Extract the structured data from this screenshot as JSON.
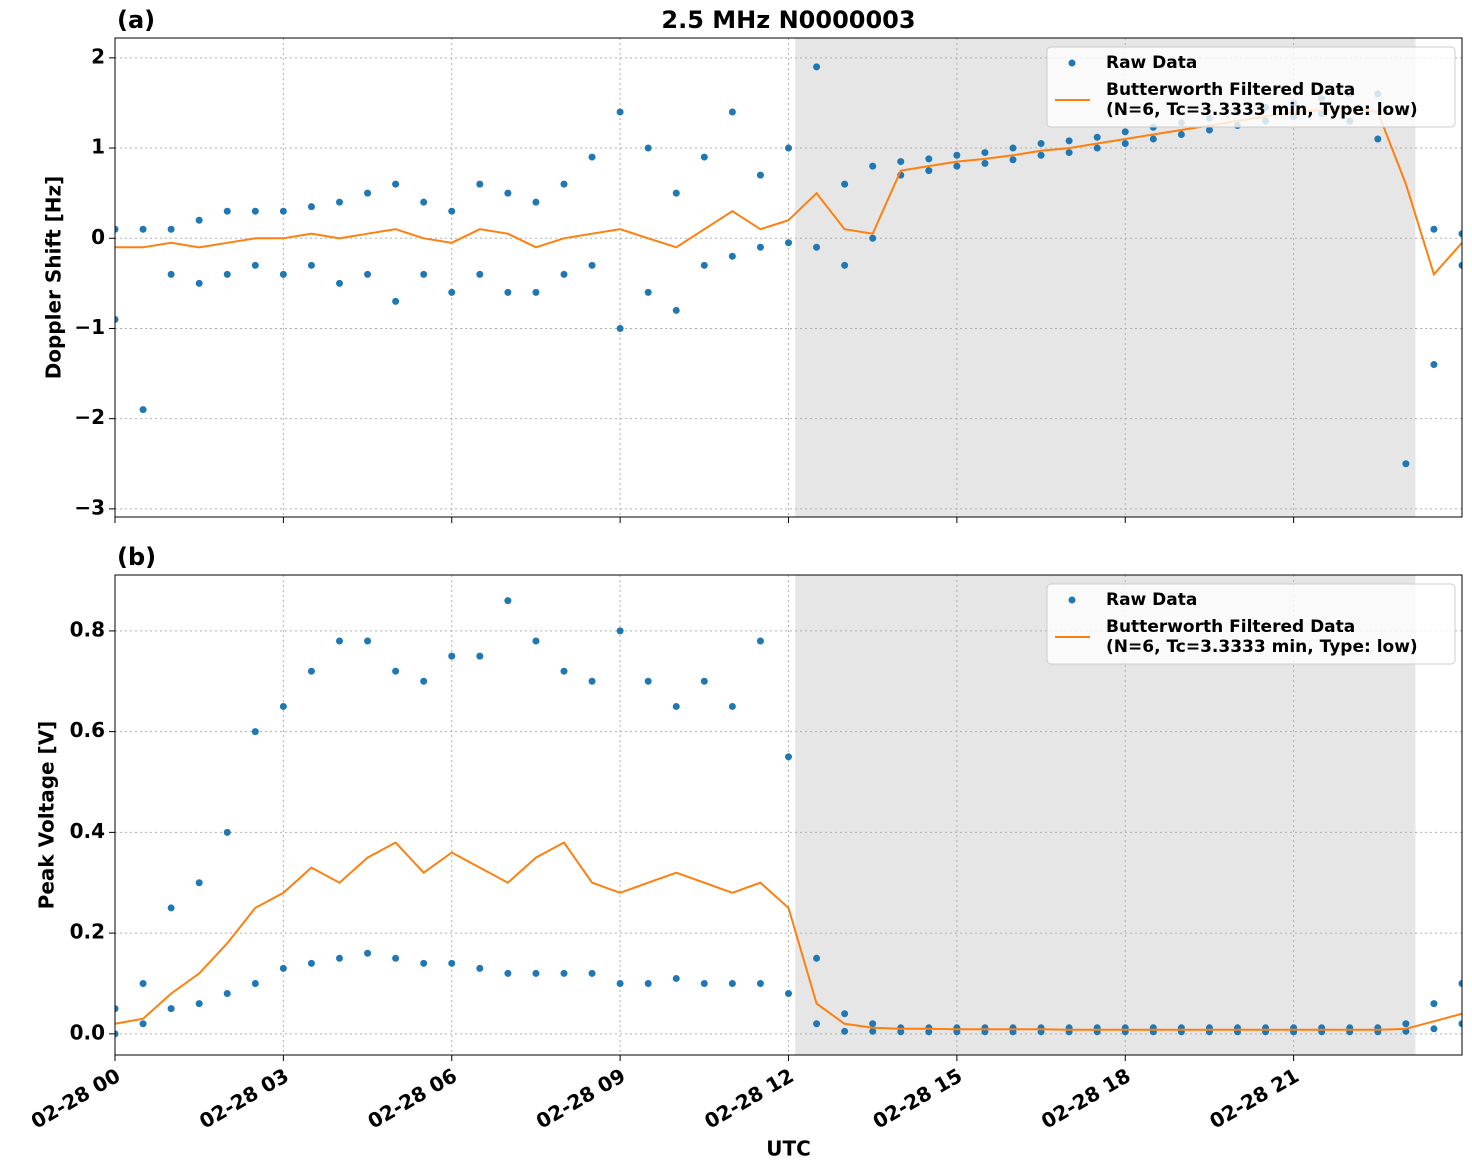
{
  "chart_data": [
    {
      "type": "line",
      "title": "2.5 MHz N0000003",
      "panel_label": "(a)",
      "ylabel": "Doppler Shift [Hz]",
      "ylim": [
        -3.09,
        2.22
      ],
      "yticks": [
        {
          "value": -3,
          "label": "−3"
        },
        {
          "value": -2,
          "label": "−2"
        },
        {
          "value": -1,
          "label": "−1"
        },
        0,
        1,
        2
      ],
      "shade": [
        12.12,
        23.17
      ],
      "grid": true,
      "legend": "upper right",
      "series": [
        {
          "name": "Raw Data",
          "type": "scatter",
          "color": "#1f77b4",
          "x": [
            0,
            0,
            0.5,
            0.5,
            1,
            1,
            1.5,
            1.5,
            2,
            2,
            2.5,
            2.5,
            3,
            3,
            3.5,
            3.5,
            4,
            4,
            4.5,
            4.5,
            5,
            5,
            5.5,
            5.5,
            6,
            6,
            6.5,
            6.5,
            7,
            7,
            7.5,
            7.5,
            8,
            8,
            8.5,
            8.5,
            9,
            9,
            9.5,
            9.5,
            10,
            10,
            10.5,
            10.5,
            11,
            11,
            11.5,
            11.5,
            12,
            12,
            12.5,
            12.5,
            13,
            13,
            13.5,
            13.5,
            14,
            14,
            14.5,
            14.5,
            15,
            15,
            15.5,
            15.5,
            16,
            16,
            16.5,
            16.5,
            17,
            17,
            17.5,
            17.5,
            18,
            18,
            18.5,
            18.5,
            19,
            19,
            19.5,
            19.5,
            20,
            20,
            20.5,
            20.5,
            21,
            21,
            21.5,
            21.5,
            22,
            22,
            22.5,
            22.5,
            23,
            23,
            23.5,
            23.5,
            24,
            24
          ],
          "values": [
            -0.9,
            0.1,
            -1.9,
            0.1,
            -0.4,
            0.1,
            -0.5,
            0.2,
            -0.4,
            0.3,
            -0.3,
            0.3,
            -0.4,
            0.3,
            -0.3,
            0.35,
            -0.5,
            0.4,
            -0.4,
            0.5,
            -0.7,
            0.6,
            -0.4,
            0.4,
            -0.6,
            0.3,
            -0.4,
            0.6,
            -0.6,
            0.5,
            -0.6,
            0.4,
            -0.4,
            0.6,
            -0.3,
            0.9,
            -1.0,
            1.4,
            -0.6,
            1.0,
            -0.8,
            0.5,
            -0.3,
            0.9,
            -0.2,
            1.4,
            -0.1,
            0.7,
            -0.05,
            1.0,
            -0.1,
            1.9,
            -0.3,
            0.6,
            0.0,
            0.8,
            0.7,
            0.85,
            0.75,
            0.88,
            0.8,
            0.92,
            0.83,
            0.95,
            0.87,
            1.0,
            0.92,
            1.05,
            0.95,
            1.08,
            1.0,
            1.12,
            1.05,
            1.18,
            1.1,
            1.23,
            1.15,
            1.28,
            1.2,
            1.33,
            1.25,
            1.4,
            1.3,
            1.45,
            1.35,
            1.5,
            1.38,
            1.55,
            1.3,
            1.6,
            1.1,
            1.6,
            -2.5,
            1.4,
            -1.4,
            0.1,
            -0.3,
            0.05
          ]
        },
        {
          "name": "Butterworth Filtered Data\n(N=6, Tc=3.3333 min, Type: low)",
          "type": "line",
          "color": "#ff7f0e",
          "x": [
            0,
            0.5,
            1,
            1.5,
            2,
            2.5,
            3,
            3.5,
            4,
            4.5,
            5,
            5.5,
            6,
            6.5,
            7,
            7.5,
            8,
            8.5,
            9,
            9.5,
            10,
            10.5,
            11,
            11.5,
            12,
            12.5,
            13,
            13.5,
            14,
            14.5,
            15,
            15.5,
            16,
            16.5,
            17,
            17.5,
            18,
            18.5,
            19,
            19.5,
            20,
            20.5,
            21,
            21.5,
            22,
            22.5,
            23,
            23.5,
            24
          ],
          "values": [
            -0.1,
            -0.1,
            -0.05,
            -0.1,
            -0.05,
            0,
            0,
            0.05,
            0,
            0.05,
            0.1,
            0,
            -0.05,
            0.1,
            0.05,
            -0.1,
            0,
            0.05,
            0.1,
            0,
            -0.1,
            0.1,
            0.3,
            0.1,
            0.2,
            0.5,
            0.1,
            0.05,
            0.75,
            0.8,
            0.85,
            0.88,
            0.92,
            0.97,
            1.0,
            1.05,
            1.1,
            1.15,
            1.2,
            1.25,
            1.3,
            1.35,
            1.4,
            1.42,
            1.45,
            1.4,
            0.6,
            -0.4,
            -0.05
          ]
        }
      ]
    },
    {
      "type": "line",
      "panel_label": "(b)",
      "ylabel": "Peak Voltage [V]",
      "xlabel": "UTC",
      "xlim": [
        0,
        24
      ],
      "xticks": [
        {
          "value": 0,
          "label": "02-28 00"
        },
        {
          "value": 3,
          "label": "02-28 03"
        },
        {
          "value": 6,
          "label": "02-28 06"
        },
        {
          "value": 9,
          "label": "02-28 09"
        },
        {
          "value": 12,
          "label": "02-28 12"
        },
        {
          "value": 15,
          "label": "02-28 15"
        },
        {
          "value": 18,
          "label": "02-28 18"
        },
        {
          "value": 21,
          "label": "02-28 21"
        }
      ],
      "ylim": [
        -0.042,
        0.911
      ],
      "yticks": [
        {
          "value": 0,
          "label": "0.0"
        },
        0.2,
        0.4,
        0.6,
        0.8
      ],
      "shade": [
        12.12,
        23.17
      ],
      "grid": true,
      "legend": "upper right",
      "series": [
        {
          "name": "Raw Data",
          "type": "scatter",
          "color": "#1f77b4",
          "x": [
            0,
            0,
            0.5,
            0.5,
            1,
            1,
            1.5,
            1.5,
            2,
            2,
            2.5,
            2.5,
            3,
            3,
            3.5,
            3.5,
            4,
            4,
            4.5,
            4.5,
            5,
            5,
            5.5,
            5.5,
            6,
            6,
            6.5,
            6.5,
            7,
            7,
            7.5,
            7.5,
            8,
            8,
            8.5,
            8.5,
            9,
            9,
            9.5,
            9.5,
            10,
            10,
            10.5,
            10.5,
            11,
            11,
            11.5,
            11.5,
            12,
            12,
            12.5,
            12.5,
            13,
            13,
            13.5,
            13.5,
            14,
            14,
            14.5,
            14.5,
            15,
            15,
            15.5,
            15.5,
            16,
            16,
            16.5,
            16.5,
            17,
            17,
            17.5,
            17.5,
            18,
            18,
            18.5,
            18.5,
            19,
            19,
            19.5,
            19.5,
            20,
            20,
            20.5,
            20.5,
            21,
            21,
            21.5,
            21.5,
            22,
            22,
            22.5,
            22.5,
            23,
            23,
            23.5,
            23.5,
            24,
            24
          ],
          "values": [
            0.0,
            0.05,
            0.02,
            0.1,
            0.05,
            0.25,
            0.06,
            0.3,
            0.08,
            0.4,
            0.1,
            0.6,
            0.13,
            0.65,
            0.14,
            0.72,
            0.15,
            0.78,
            0.16,
            0.78,
            0.15,
            0.72,
            0.14,
            0.7,
            0.14,
            0.75,
            0.13,
            0.75,
            0.12,
            0.86,
            0.12,
            0.78,
            0.12,
            0.72,
            0.12,
            0.7,
            0.1,
            0.8,
            0.1,
            0.7,
            0.11,
            0.65,
            0.1,
            0.7,
            0.1,
            0.65,
            0.1,
            0.78,
            0.08,
            0.55,
            0.02,
            0.15,
            0.005,
            0.04,
            0.005,
            0.02,
            0.004,
            0.012,
            0.004,
            0.012,
            0.004,
            0.012,
            0.004,
            0.012,
            0.004,
            0.012,
            0.004,
            0.012,
            0.004,
            0.012,
            0.004,
            0.012,
            0.004,
            0.012,
            0.004,
            0.012,
            0.004,
            0.012,
            0.004,
            0.012,
            0.004,
            0.012,
            0.004,
            0.012,
            0.004,
            0.012,
            0.004,
            0.012,
            0.004,
            0.012,
            0.004,
            0.012,
            0.005,
            0.02,
            0.01,
            0.06,
            0.02,
            0.1
          ]
        },
        {
          "name": "Butterworth Filtered Data\n(N=6, Tc=3.3333 min, Type: low)",
          "type": "line",
          "color": "#ff7f0e",
          "x": [
            0,
            0.5,
            1,
            1.5,
            2,
            2.5,
            3,
            3.5,
            4,
            4.5,
            5,
            5.5,
            6,
            6.5,
            7,
            7.5,
            8,
            8.5,
            9,
            9.5,
            10,
            10.5,
            11,
            11.5,
            12,
            12.5,
            13,
            13.5,
            14,
            14.5,
            15,
            15.5,
            16,
            16.5,
            17,
            17.5,
            18,
            18.5,
            19,
            19.5,
            20,
            20.5,
            21,
            21.5,
            22,
            22.5,
            23,
            23.5,
            24
          ],
          "values": [
            0.02,
            0.03,
            0.08,
            0.12,
            0.18,
            0.25,
            0.28,
            0.33,
            0.3,
            0.35,
            0.38,
            0.32,
            0.36,
            0.33,
            0.3,
            0.35,
            0.38,
            0.3,
            0.28,
            0.3,
            0.32,
            0.3,
            0.28,
            0.3,
            0.25,
            0.06,
            0.02,
            0.012,
            0.01,
            0.01,
            0.009,
            0.009,
            0.009,
            0.009,
            0.008,
            0.008,
            0.008,
            0.008,
            0.008,
            0.008,
            0.008,
            0.008,
            0.008,
            0.008,
            0.008,
            0.008,
            0.01,
            0.025,
            0.04
          ]
        }
      ]
    }
  ]
}
